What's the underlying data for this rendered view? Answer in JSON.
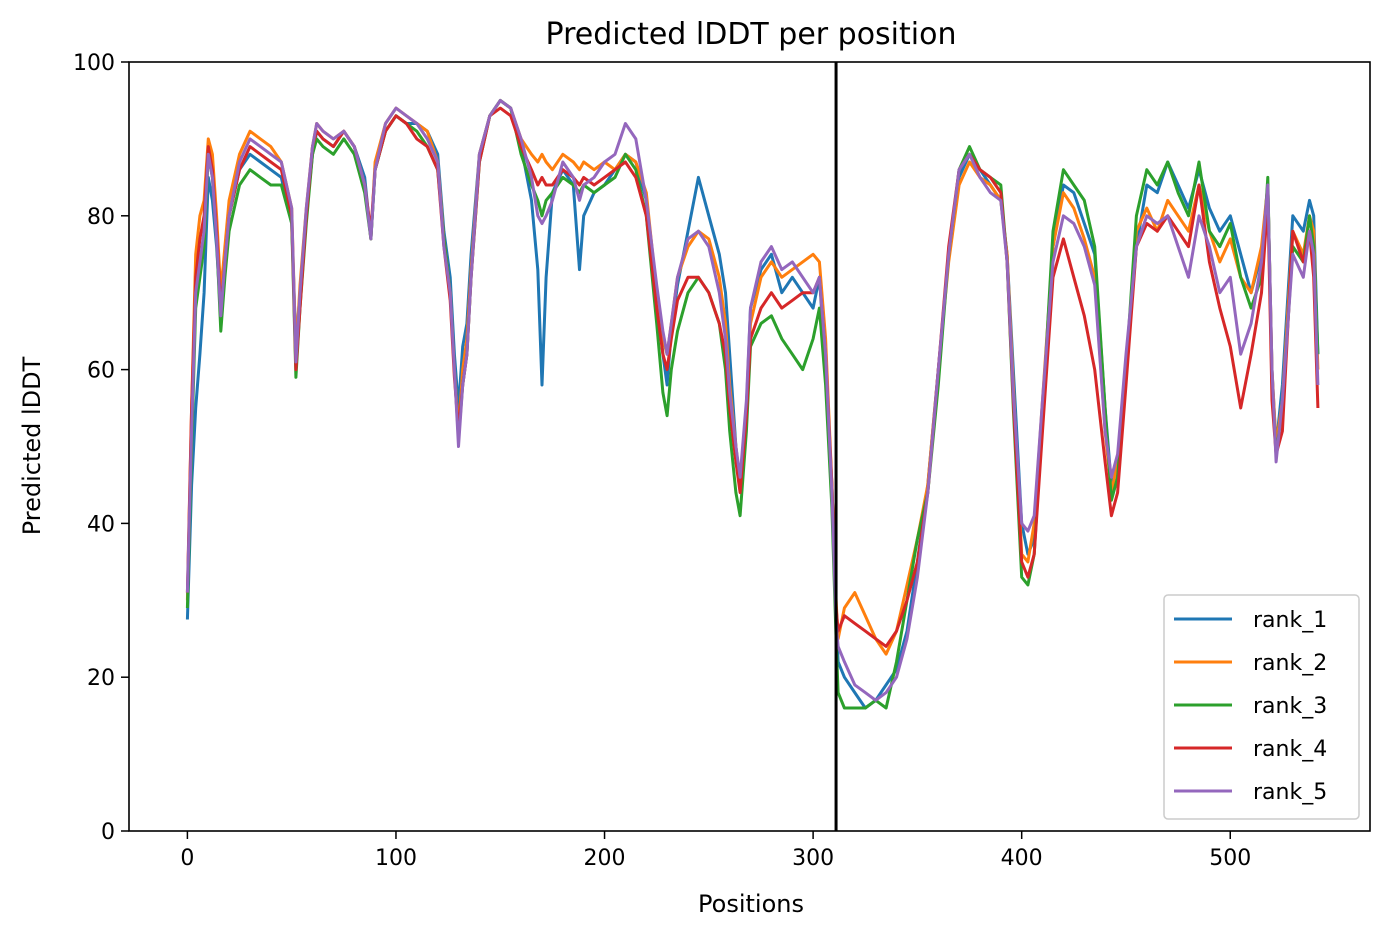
{
  "chart_data": {
    "type": "line",
    "title": "Predicted lDDT per position",
    "xlabel": "Positions",
    "ylabel": "Predicted lDDT",
    "xlim": [
      -28,
      567
    ],
    "ylim": [
      0,
      100
    ],
    "xticks": [
      0,
      100,
      200,
      300,
      400,
      500
    ],
    "yticks": [
      0,
      20,
      40,
      60,
      80,
      100
    ],
    "grid": false,
    "legend_position": "lower right",
    "divider_x": 311,
    "x": [
      0,
      2,
      4,
      6,
      8,
      10,
      12,
      14,
      16,
      18,
      20,
      25,
      30,
      35,
      40,
      45,
      50,
      52,
      54,
      57,
      60,
      62,
      65,
      70,
      75,
      80,
      85,
      88,
      90,
      95,
      100,
      105,
      110,
      115,
      120,
      123,
      126,
      128,
      130,
      132,
      134,
      136,
      140,
      145,
      150,
      155,
      160,
      165,
      168,
      170,
      172,
      175,
      180,
      185,
      188,
      190,
      195,
      200,
      205,
      210,
      215,
      220,
      225,
      228,
      230,
      232,
      235,
      240,
      245,
      250,
      255,
      258,
      260,
      263,
      265,
      268,
      270,
      275,
      280,
      285,
      290,
      295,
      300,
      303,
      306,
      309,
      311,
      312,
      315,
      320,
      325,
      330,
      335,
      340,
      345,
      350,
      355,
      360,
      365,
      370,
      375,
      380,
      385,
      390,
      393,
      396,
      400,
      403,
      406,
      410,
      415,
      420,
      425,
      430,
      435,
      440,
      443,
      446,
      450,
      455,
      460,
      465,
      470,
      475,
      480,
      485,
      490,
      495,
      500,
      505,
      510,
      515,
      518,
      520,
      522,
      525,
      530,
      535,
      538,
      540,
      542
    ],
    "series": [
      {
        "name": "rank_1",
        "color": "#1f77b4",
        "values": [
          27.5,
          45,
          55,
          62,
          70,
          85,
          82,
          76,
          67,
          74,
          80,
          86,
          88,
          87,
          86,
          85,
          79,
          63,
          70,
          80,
          88,
          91,
          90,
          89,
          91,
          89,
          85,
          77,
          86,
          91,
          93,
          92,
          92,
          91,
          88,
          78,
          72,
          62,
          55,
          63,
          66,
          75,
          88,
          93,
          95,
          94,
          89,
          82,
          73,
          58,
          72,
          83,
          86,
          84,
          73,
          80,
          83,
          84,
          86,
          88,
          87,
          82,
          70,
          62,
          58,
          65,
          71,
          78,
          85,
          80,
          75,
          70,
          62,
          50,
          45,
          55,
          68,
          73,
          75,
          70,
          72,
          70,
          68,
          72,
          60,
          45,
          28,
          22,
          20,
          18,
          16,
          17,
          19,
          21,
          26,
          35,
          45,
          60,
          75,
          85,
          88,
          86,
          84,
          82,
          75,
          60,
          40,
          36,
          38,
          55,
          76,
          84,
          83,
          79,
          75,
          55,
          45,
          47,
          60,
          76,
          84,
          83,
          87,
          84,
          81,
          86,
          81,
          78,
          80,
          75,
          70,
          75,
          84,
          60,
          50,
          58,
          80,
          78,
          82,
          80,
          62
        ]
      },
      {
        "name": "rank_2",
        "color": "#ff7f0e",
        "values": [
          30,
          55,
          75,
          80,
          82,
          90,
          88,
          80,
          70,
          76,
          82,
          88,
          91,
          90,
          89,
          87,
          81,
          62,
          71,
          81,
          89,
          92,
          91,
          90,
          91,
          89,
          84,
          77,
          87,
          92,
          94,
          93,
          92,
          91,
          87,
          77,
          70,
          60,
          52,
          60,
          64,
          73,
          88,
          93,
          95,
          94,
          90,
          88,
          87,
          88,
          87,
          86,
          88,
          87,
          86,
          87,
          86,
          87,
          86,
          88,
          87,
          83,
          70,
          64,
          62,
          66,
          72,
          76,
          78,
          77,
          72,
          66,
          58,
          50,
          45,
          55,
          66,
          72,
          74,
          72,
          73,
          74,
          75,
          74,
          64,
          45,
          30,
          25,
          29,
          31,
          28,
          25,
          23,
          26,
          32,
          38,
          45,
          60,
          74,
          84,
          87,
          85,
          84,
          82,
          75,
          58,
          36,
          35,
          40,
          56,
          76,
          83,
          81,
          77,
          72,
          52,
          44,
          48,
          60,
          78,
          81,
          78,
          82,
          80,
          78,
          84,
          78,
          74,
          77,
          72,
          70,
          76,
          84,
          60,
          50,
          56,
          78,
          75,
          80,
          78,
          60
        ]
      },
      {
        "name": "rank_3",
        "color": "#2ca02c",
        "values": [
          29,
          50,
          68,
          72,
          76,
          88,
          85,
          77,
          65,
          72,
          78,
          84,
          86,
          85,
          84,
          84,
          79,
          59,
          68,
          79,
          88,
          90,
          89,
          88,
          90,
          88,
          83,
          77,
          86,
          91,
          93,
          92,
          91,
          89,
          86,
          77,
          70,
          60,
          51,
          58,
          62,
          72,
          87,
          93,
          95,
          94,
          88,
          84,
          82,
          80,
          82,
          83,
          85,
          84,
          83,
          84,
          83,
          84,
          85,
          88,
          86,
          80,
          66,
          57,
          54,
          60,
          65,
          70,
          72,
          70,
          66,
          60,
          52,
          44,
          41,
          52,
          63,
          66,
          67,
          64,
          62,
          60,
          64,
          68,
          58,
          42,
          25,
          18,
          16,
          16,
          16,
          17,
          16,
          22,
          30,
          38,
          44,
          58,
          75,
          86,
          89,
          86,
          85,
          84,
          74,
          55,
          33,
          32,
          36,
          54,
          78,
          86,
          84,
          82,
          76,
          55,
          43,
          46,
          60,
          80,
          86,
          84,
          87,
          83,
          80,
          87,
          78,
          76,
          79,
          72,
          68,
          72,
          85,
          58,
          49,
          55,
          76,
          74,
          80,
          76,
          62
        ]
      },
      {
        "name": "rank_4",
        "color": "#d62728",
        "values": [
          31,
          55,
          72,
          77,
          80,
          89,
          86,
          78,
          68,
          74,
          80,
          86,
          89,
          88,
          87,
          86,
          80,
          60,
          68,
          80,
          89,
          91,
          90,
          89,
          91,
          89,
          84,
          78,
          86,
          91,
          93,
          92,
          90,
          89,
          86,
          76,
          69,
          59,
          52,
          58,
          62,
          72,
          87,
          93,
          94,
          93,
          89,
          86,
          84,
          85,
          84,
          84,
          86,
          85,
          84,
          85,
          84,
          85,
          86,
          87,
          85,
          80,
          68,
          62,
          60,
          64,
          69,
          72,
          72,
          70,
          66,
          62,
          55,
          48,
          44,
          54,
          64,
          68,
          70,
          68,
          69,
          70,
          70,
          72,
          62,
          45,
          29,
          26,
          28,
          27,
          26,
          25,
          24,
          26,
          30,
          35,
          44,
          60,
          76,
          86,
          88,
          86,
          85,
          83,
          74,
          56,
          35,
          33,
          36,
          52,
          72,
          77,
          72,
          67,
          60,
          48,
          41,
          44,
          58,
          76,
          79,
          78,
          80,
          78,
          76,
          84,
          74,
          68,
          63,
          55,
          62,
          70,
          82,
          56,
          49,
          52,
          78,
          74,
          78,
          72,
          55
        ]
      },
      {
        "name": "rank_5",
        "color": "#9467bd",
        "values": [
          31,
          52,
          70,
          74,
          78,
          88,
          85,
          77,
          67,
          74,
          80,
          87,
          90,
          89,
          88,
          87,
          81,
          61,
          70,
          81,
          89,
          92,
          91,
          90,
          91,
          89,
          84,
          77,
          86,
          92,
          94,
          93,
          92,
          90,
          87,
          76,
          70,
          60,
          50,
          58,
          62,
          72,
          88,
          93,
          95,
          94,
          90,
          85,
          80,
          79,
          80,
          82,
          87,
          85,
          82,
          84,
          85,
          87,
          88,
          92,
          90,
          82,
          71,
          65,
          62,
          66,
          72,
          77,
          78,
          76,
          70,
          64,
          57,
          50,
          46,
          56,
          68,
          74,
          76,
          73,
          74,
          72,
          70,
          72,
          62,
          44,
          27,
          24,
          22,
          19,
          18,
          17,
          18,
          20,
          25,
          33,
          44,
          60,
          75,
          86,
          88,
          85,
          83,
          82,
          74,
          57,
          40,
          39,
          41,
          56,
          74,
          80,
          79,
          76,
          71,
          52,
          46,
          49,
          62,
          76,
          80,
          79,
          80,
          76,
          72,
          80,
          76,
          70,
          72,
          62,
          66,
          74,
          84,
          60,
          48,
          56,
          75,
          72,
          78,
          75,
          58
        ]
      }
    ]
  }
}
